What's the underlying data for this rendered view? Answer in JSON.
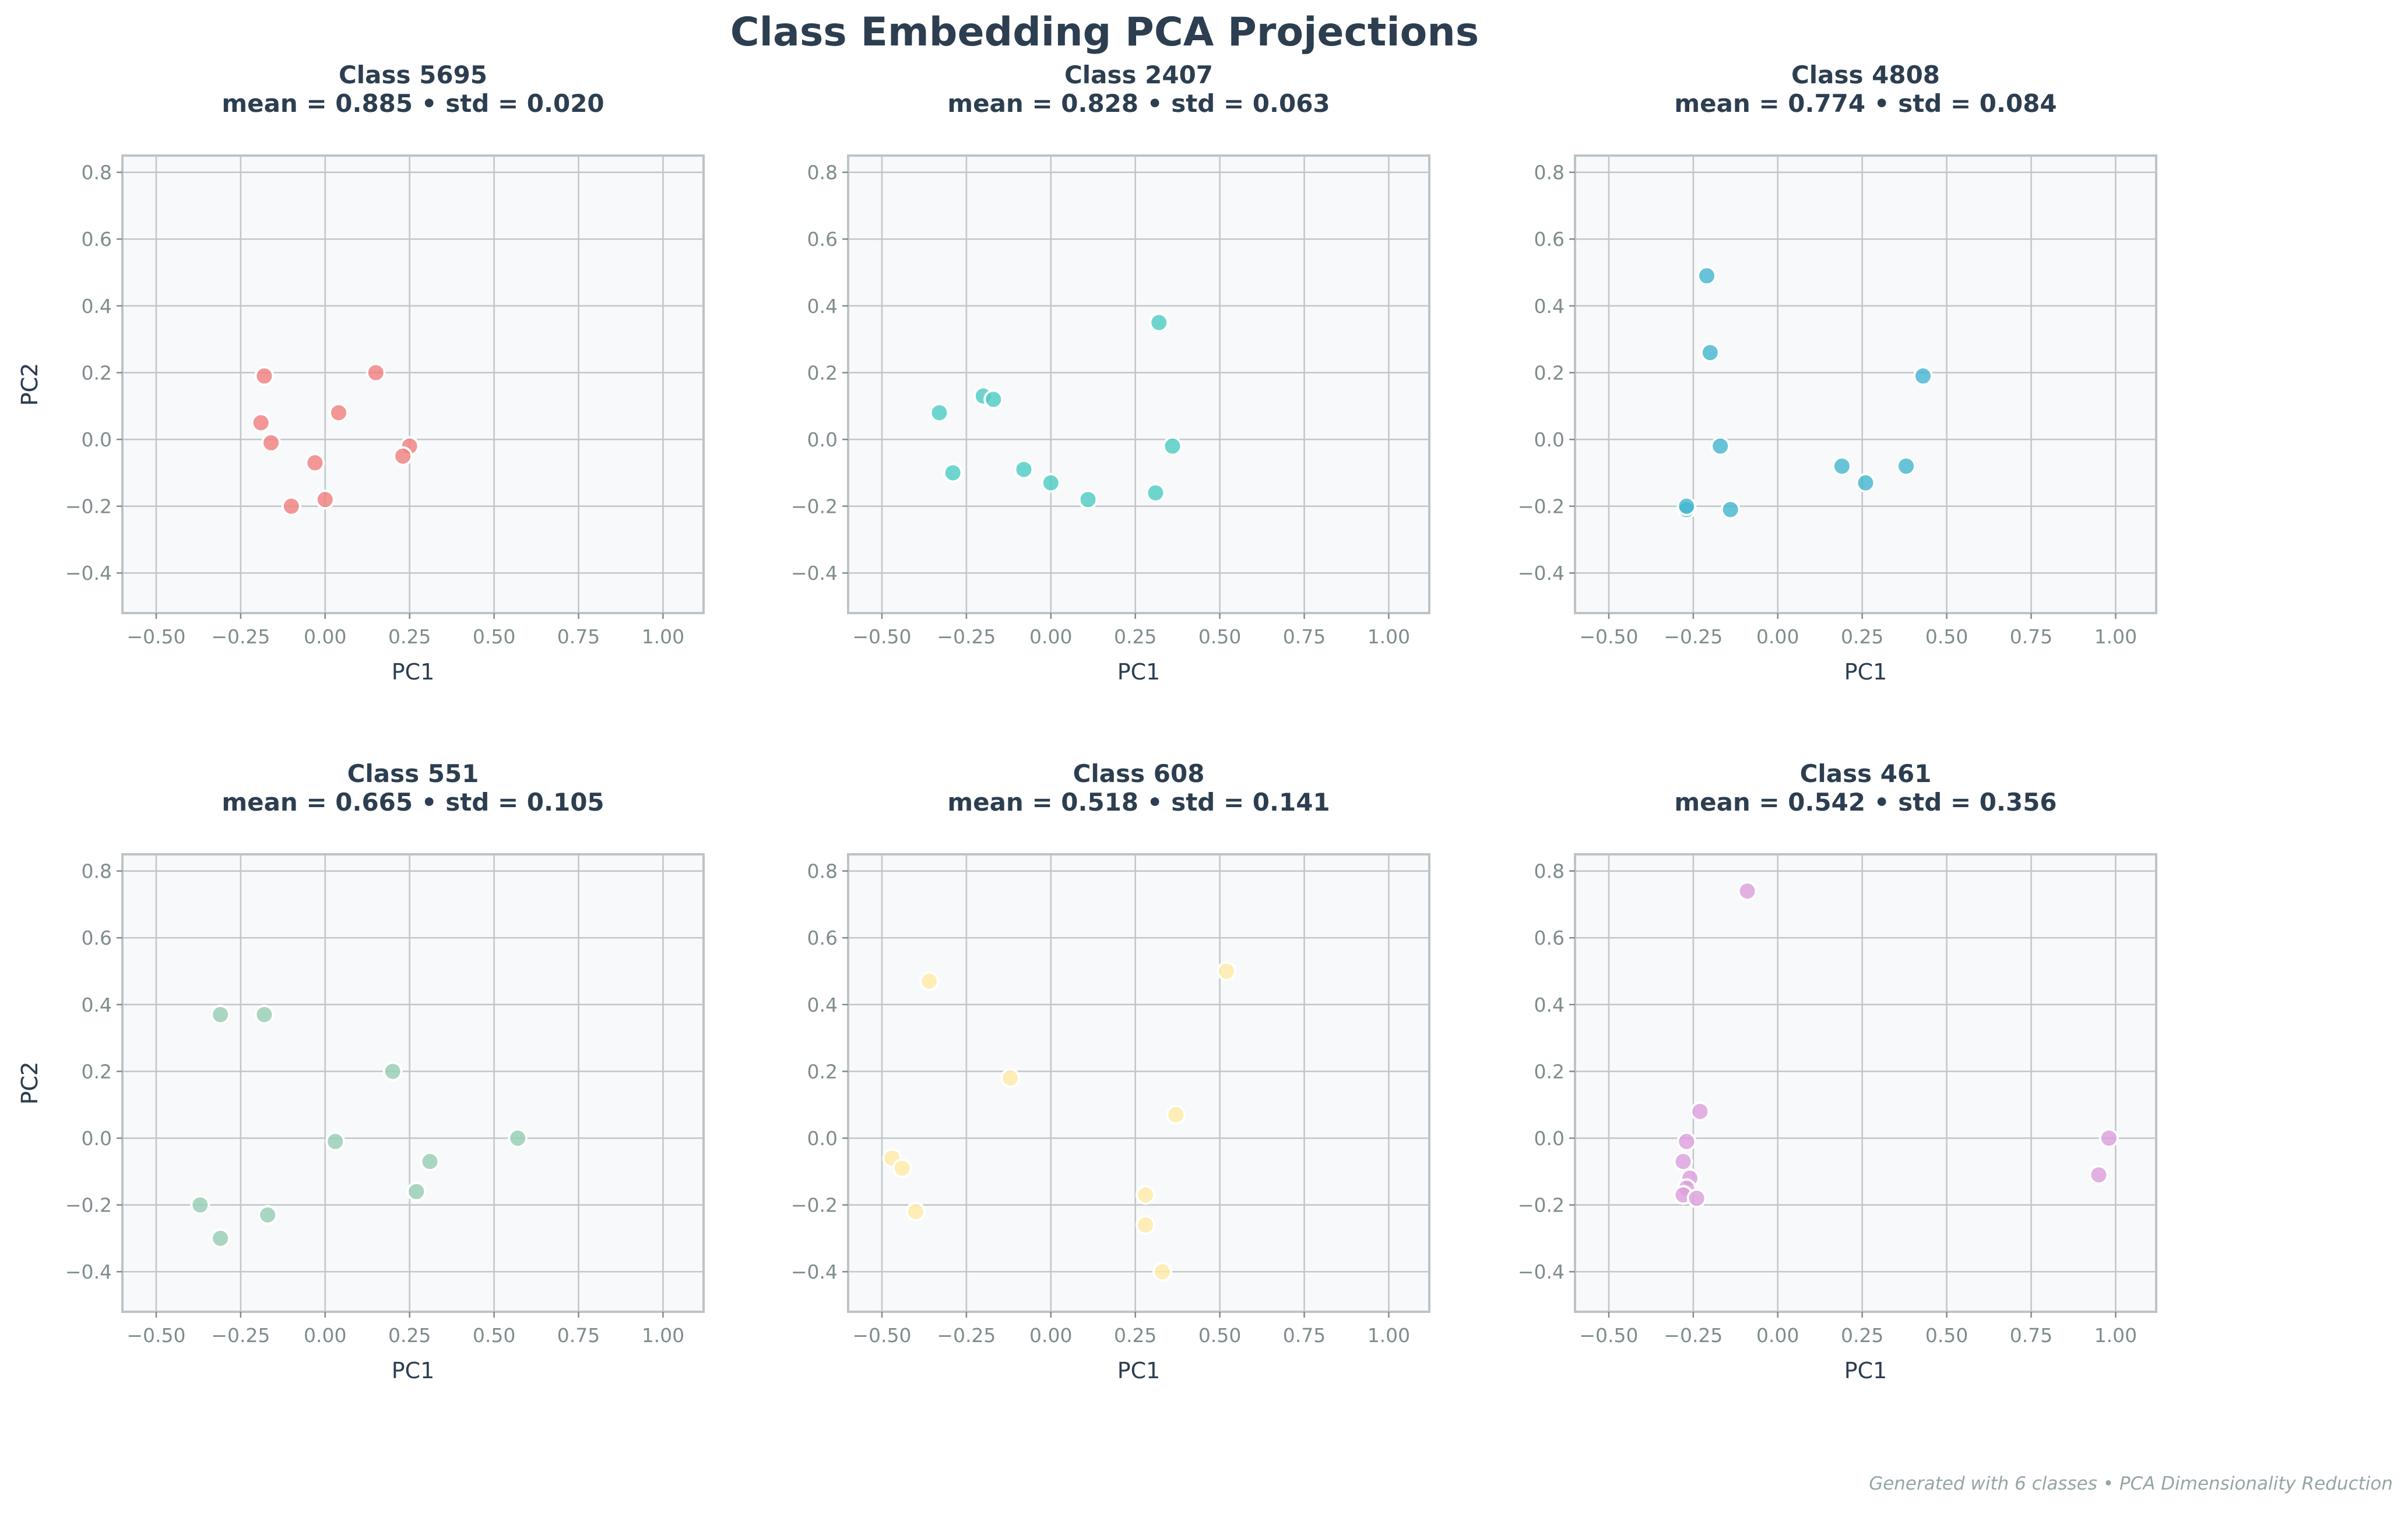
{
  "title": "Class Embedding PCA Projections",
  "footer": "Generated with 6 classes • PCA Dimensionality Reduction",
  "x_ticks": [
    "−0.50",
    "−0.25",
    "0.00",
    "0.25",
    "0.50",
    "0.75",
    "1.00"
  ],
  "y_ticks": [
    "−0.4",
    "−0.2",
    "0.0",
    "0.2",
    "0.4",
    "0.6",
    "0.8"
  ],
  "chart_data": [
    {
      "type": "scatter",
      "title": "Class 5695",
      "subtitle": "mean = 0.885 • std = 0.020",
      "xlabel": "PC1",
      "ylabel": "PC2",
      "xlim": [
        -0.6,
        1.12
      ],
      "ylim": [
        -0.52,
        0.85
      ],
      "grid": true,
      "color": "#f08080",
      "points": [
        [
          -0.18,
          0.19
        ],
        [
          -0.19,
          0.05
        ],
        [
          -0.16,
          -0.01
        ],
        [
          0.15,
          0.2
        ],
        [
          0.04,
          0.08
        ],
        [
          -0.03,
          -0.07
        ],
        [
          0.25,
          -0.02
        ],
        [
          0.23,
          -0.05
        ],
        [
          -0.1,
          -0.2
        ],
        [
          -0.0,
          -0.18
        ]
      ]
    },
    {
      "type": "scatter",
      "title": "Class 2407",
      "subtitle": "mean = 0.828 • std = 0.063",
      "xlabel": "PC1",
      "ylabel": "PC2",
      "xlim": [
        -0.6,
        1.12
      ],
      "ylim": [
        -0.52,
        0.85
      ],
      "grid": true,
      "color": "#4ecdc4",
      "points": [
        [
          0.32,
          0.35
        ],
        [
          -0.33,
          0.08
        ],
        [
          -0.2,
          0.13
        ],
        [
          -0.17,
          0.12
        ],
        [
          -0.29,
          -0.1
        ],
        [
          -0.08,
          -0.09
        ],
        [
          0.0,
          -0.13
        ],
        [
          0.11,
          -0.18
        ],
        [
          0.31,
          -0.16
        ],
        [
          0.36,
          -0.02
        ]
      ]
    },
    {
      "type": "scatter",
      "title": "Class 4808",
      "subtitle": "mean = 0.774 • std = 0.084",
      "xlabel": "PC1",
      "ylabel": "PC2",
      "xlim": [
        -0.6,
        1.12
      ],
      "ylim": [
        -0.52,
        0.85
      ],
      "grid": true,
      "color": "#45b7d1",
      "points": [
        [
          -0.21,
          0.49
        ],
        [
          -0.2,
          0.26
        ],
        [
          0.43,
          0.19
        ],
        [
          -0.17,
          -0.02
        ],
        [
          0.19,
          -0.08
        ],
        [
          0.26,
          -0.13
        ],
        [
          0.38,
          -0.08
        ],
        [
          -0.27,
          -0.21
        ],
        [
          -0.27,
          -0.2
        ],
        [
          -0.14,
          -0.21
        ]
      ]
    },
    {
      "type": "scatter",
      "title": "Class 551",
      "subtitle": "mean = 0.665 • std = 0.105",
      "xlabel": "PC1",
      "ylabel": "PC2",
      "xlim": [
        -0.6,
        1.12
      ],
      "ylim": [
        -0.52,
        0.85
      ],
      "grid": true,
      "color": "#96ceb4",
      "points": [
        [
          -0.31,
          0.37
        ],
        [
          -0.18,
          0.37
        ],
        [
          0.2,
          0.2
        ],
        [
          0.03,
          -0.01
        ],
        [
          0.31,
          -0.07
        ],
        [
          0.57,
          0.0
        ],
        [
          0.27,
          -0.16
        ],
        [
          -0.37,
          -0.2
        ],
        [
          -0.31,
          -0.3
        ],
        [
          -0.17,
          -0.23
        ]
      ]
    },
    {
      "type": "scatter",
      "title": "Class 608",
      "subtitle": "mean = 0.518 • std = 0.141",
      "xlabel": "PC1",
      "ylabel": "PC2",
      "xlim": [
        -0.6,
        1.12
      ],
      "ylim": [
        -0.52,
        0.85
      ],
      "grid": true,
      "color": "#ffeaa7",
      "points": [
        [
          -0.36,
          0.47
        ],
        [
          0.52,
          0.5
        ],
        [
          -0.12,
          0.18
        ],
        [
          0.37,
          0.07
        ],
        [
          -0.47,
          -0.06
        ],
        [
          -0.44,
          -0.09
        ],
        [
          -0.4,
          -0.22
        ],
        [
          0.28,
          -0.17
        ],
        [
          0.28,
          -0.26
        ],
        [
          0.33,
          -0.4
        ]
      ]
    },
    {
      "type": "scatter",
      "title": "Class 461",
      "subtitle": "mean = 0.542 • std = 0.356",
      "xlabel": "PC1",
      "ylabel": "PC2",
      "xlim": [
        -0.6,
        1.12
      ],
      "ylim": [
        -0.52,
        0.85
      ],
      "grid": true,
      "color": "#dda0dd",
      "points": [
        [
          -0.09,
          0.74
        ],
        [
          -0.23,
          0.08
        ],
        [
          -0.27,
          -0.01
        ],
        [
          -0.28,
          -0.07
        ],
        [
          -0.26,
          -0.12
        ],
        [
          -0.27,
          -0.15
        ],
        [
          -0.28,
          -0.17
        ],
        [
          -0.24,
          -0.18
        ],
        [
          0.98,
          0.0
        ],
        [
          0.95,
          -0.11
        ]
      ]
    }
  ]
}
